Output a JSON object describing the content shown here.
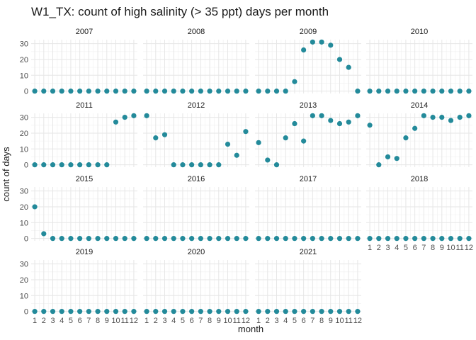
{
  "chart_data": {
    "type": "scatter",
    "title": "W1_TX: count of high salinity (> 35 ppt) days per month",
    "xlabel": "month",
    "ylabel": "count of days",
    "x": [
      1,
      2,
      3,
      4,
      5,
      6,
      7,
      8,
      9,
      10,
      11,
      12
    ],
    "xticks": [
      "1",
      "2",
      "3",
      "4",
      "5",
      "6",
      "7",
      "8",
      "9",
      "10",
      "11",
      "12"
    ],
    "yticks": [
      0,
      10,
      20,
      30
    ],
    "ylim": [
      -1.5,
      32.5
    ],
    "grid": true,
    "point_color": "#238A9A",
    "panels": [
      {
        "name": "2007",
        "values": [
          0,
          0,
          0,
          0,
          0,
          0,
          0,
          0,
          0,
          0,
          0,
          0
        ]
      },
      {
        "name": "2008",
        "values": [
          0,
          0,
          0,
          0,
          0,
          0,
          0,
          0,
          0,
          0,
          0,
          0
        ]
      },
      {
        "name": "2009",
        "values": [
          0,
          0,
          0,
          0,
          6,
          26,
          31,
          31,
          29,
          20,
          15,
          0
        ]
      },
      {
        "name": "2010",
        "values": [
          0,
          0,
          0,
          0,
          0,
          0,
          0,
          0,
          0,
          0,
          0,
          0
        ]
      },
      {
        "name": "2011",
        "values": [
          0,
          0,
          0,
          0,
          0,
          0,
          0,
          0,
          0,
          27,
          30,
          31
        ]
      },
      {
        "name": "2012",
        "values": [
          31,
          17,
          19,
          0,
          0,
          0,
          0,
          0,
          0,
          13,
          6,
          21
        ]
      },
      {
        "name": "2013",
        "values": [
          14,
          3,
          0,
          17,
          26,
          15,
          31,
          31,
          28,
          26,
          27,
          31
        ]
      },
      {
        "name": "2014",
        "values": [
          25,
          0,
          5,
          4,
          17,
          23,
          31,
          30,
          30,
          28,
          30,
          31
        ]
      },
      {
        "name": "2015",
        "values": [
          20,
          3,
          0,
          0,
          0,
          0,
          0,
          0,
          0,
          0,
          0,
          0
        ]
      },
      {
        "name": "2016",
        "values": [
          0,
          0,
          0,
          0,
          0,
          0,
          0,
          0,
          0,
          0,
          0,
          0
        ]
      },
      {
        "name": "2017",
        "values": [
          0,
          0,
          0,
          0,
          0,
          0,
          0,
          0,
          0,
          0,
          0,
          0
        ]
      },
      {
        "name": "2018",
        "values": [
          0,
          0,
          0,
          0,
          0,
          0,
          0,
          0,
          0,
          0,
          0,
          0
        ]
      },
      {
        "name": "2019",
        "values": [
          0,
          0,
          0,
          0,
          0,
          0,
          0,
          0,
          0,
          0,
          0,
          0
        ]
      },
      {
        "name": "2020",
        "values": [
          0,
          0,
          0,
          0,
          0,
          0,
          0,
          0,
          0,
          0,
          0,
          0
        ]
      },
      {
        "name": "2021",
        "values": [
          0,
          0,
          0,
          0,
          0,
          0,
          0,
          0,
          0,
          0,
          0,
          0
        ]
      }
    ]
  }
}
